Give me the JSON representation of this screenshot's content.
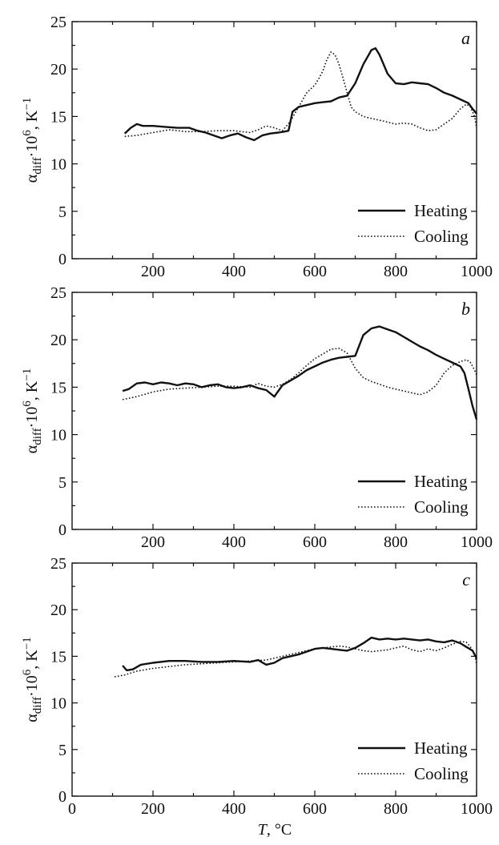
{
  "chart_data": [
    {
      "type": "line",
      "panel_label": "a",
      "ylabel": {
        "base": "α",
        "sub": "diff",
        "mid": "·10",
        "sup": "6",
        "unit": ", K",
        "unit_sup": "−1"
      },
      "xlim": [
        0,
        1000
      ],
      "ylim": [
        0,
        25
      ],
      "y_ticks": [
        0,
        5,
        10,
        15,
        20,
        25
      ],
      "x_ticks": [
        200,
        400,
        600,
        800,
        1000
      ],
      "legend_position": "bottom-right",
      "series": [
        {
          "name": "Heating",
          "style": "solid",
          "color": "#111111",
          "x": [
            130,
            145,
            160,
            175,
            200,
            230,
            260,
            290,
            310,
            330,
            350,
            370,
            390,
            410,
            430,
            450,
            470,
            490,
            510,
            525,
            535,
            545,
            560,
            580,
            600,
            620,
            640,
            660,
            680,
            700,
            720,
            740,
            750,
            760,
            780,
            800,
            820,
            840,
            860,
            880,
            900,
            920,
            940,
            960,
            980,
            990,
            1000
          ],
          "y": [
            13.2,
            13.8,
            14.2,
            14.0,
            14.0,
            13.9,
            13.8,
            13.8,
            13.5,
            13.3,
            13.0,
            12.7,
            13.0,
            13.2,
            12.8,
            12.5,
            13.0,
            13.2,
            13.3,
            13.4,
            13.5,
            15.5,
            16.0,
            16.2,
            16.4,
            16.5,
            16.6,
            17.0,
            17.2,
            18.5,
            20.5,
            22.0,
            22.2,
            21.5,
            19.5,
            18.5,
            18.4,
            18.6,
            18.5,
            18.4,
            18.0,
            17.5,
            17.2,
            16.8,
            16.4,
            15.8,
            15.3
          ]
        },
        {
          "name": "Cooling",
          "style": "dotted",
          "color": "#111111",
          "x": [
            130,
            160,
            200,
            240,
            280,
            320,
            360,
            400,
            440,
            460,
            480,
            500,
            520,
            540,
            560,
            580,
            600,
            610,
            620,
            630,
            640,
            650,
            660,
            670,
            680,
            690,
            700,
            720,
            740,
            760,
            780,
            800,
            820,
            840,
            860,
            880,
            900,
            920,
            940,
            960,
            975,
            985,
            995,
            1000
          ],
          "y": [
            12.9,
            13.0,
            13.3,
            13.6,
            13.4,
            13.4,
            13.5,
            13.5,
            13.3,
            13.6,
            14.0,
            13.8,
            13.5,
            14.5,
            16.0,
            17.5,
            18.3,
            19.0,
            19.8,
            21.0,
            21.8,
            21.5,
            20.5,
            19.0,
            17.5,
            16.0,
            15.5,
            15.0,
            14.8,
            14.6,
            14.4,
            14.2,
            14.3,
            14.2,
            13.8,
            13.5,
            13.6,
            14.2,
            14.8,
            15.8,
            16.3,
            16.0,
            15.0,
            13.8
          ]
        }
      ]
    },
    {
      "type": "line",
      "panel_label": "b",
      "ylabel": {
        "base": "α",
        "sub": "diff",
        "mid": "·10",
        "sup": "6",
        "unit": ", K",
        "unit_sup": "−1"
      },
      "xlim": [
        0,
        1000
      ],
      "ylim": [
        0,
        25
      ],
      "y_ticks": [
        0,
        5,
        10,
        15,
        20,
        25
      ],
      "x_ticks": [
        200,
        400,
        600,
        800,
        1000
      ],
      "legend_position": "bottom-right",
      "series": [
        {
          "name": "Heating",
          "style": "solid",
          "color": "#111111",
          "x": [
            125,
            140,
            160,
            180,
            200,
            220,
            240,
            260,
            280,
            300,
            320,
            340,
            360,
            380,
            400,
            420,
            440,
            460,
            480,
            500,
            520,
            540,
            560,
            580,
            600,
            620,
            640,
            660,
            680,
            700,
            720,
            740,
            760,
            780,
            800,
            820,
            840,
            860,
            880,
            900,
            920,
            940,
            960,
            970,
            980,
            990,
            1000
          ],
          "y": [
            14.6,
            14.8,
            15.4,
            15.5,
            15.3,
            15.5,
            15.4,
            15.2,
            15.4,
            15.3,
            15.0,
            15.2,
            15.3,
            15.0,
            14.9,
            15.0,
            15.2,
            14.9,
            14.7,
            14.0,
            15.2,
            15.7,
            16.2,
            16.8,
            17.2,
            17.6,
            17.9,
            18.1,
            18.2,
            18.3,
            20.5,
            21.2,
            21.4,
            21.1,
            20.8,
            20.3,
            19.8,
            19.3,
            18.9,
            18.4,
            18.0,
            17.6,
            17.2,
            16.5,
            14.8,
            13.0,
            11.6
          ]
        },
        {
          "name": "Cooling",
          "style": "dotted",
          "color": "#111111",
          "x": [
            125,
            160,
            200,
            240,
            280,
            320,
            360,
            400,
            440,
            460,
            480,
            500,
            520,
            540,
            560,
            580,
            600,
            620,
            640,
            660,
            680,
            700,
            720,
            740,
            760,
            780,
            800,
            820,
            840,
            860,
            880,
            900,
            920,
            940,
            960,
            975,
            985,
            995,
            1000
          ],
          "y": [
            13.7,
            14.0,
            14.5,
            14.8,
            14.9,
            15.0,
            15.1,
            15.1,
            15.0,
            15.4,
            15.1,
            15.0,
            15.3,
            15.8,
            16.5,
            17.3,
            18.0,
            18.5,
            19.0,
            19.1,
            18.6,
            17.0,
            16.0,
            15.6,
            15.3,
            15.0,
            14.8,
            14.6,
            14.4,
            14.2,
            14.5,
            15.2,
            16.5,
            17.3,
            17.7,
            17.9,
            17.6,
            16.8,
            16.3
          ]
        }
      ]
    },
    {
      "type": "line",
      "panel_label": "c",
      "ylabel": {
        "base": "α",
        "sub": "diff",
        "mid": "·10",
        "sup": "6",
        "unit": ", K",
        "unit_sup": "−1"
      },
      "xlabel": {
        "var": "T",
        "unit": ", °C"
      },
      "xlim": [
        0,
        1000
      ],
      "ylim": [
        0,
        25
      ],
      "y_ticks": [
        0,
        5,
        10,
        15,
        20,
        25
      ],
      "x_ticks": [
        0,
        200,
        400,
        600,
        800,
        1000
      ],
      "legend_position": "bottom-right",
      "series": [
        {
          "name": "Heating",
          "style": "solid",
          "color": "#111111",
          "x": [
            125,
            135,
            150,
            170,
            200,
            240,
            280,
            320,
            360,
            400,
            440,
            460,
            480,
            500,
            520,
            540,
            560,
            580,
            600,
            620,
            640,
            660,
            680,
            700,
            720,
            740,
            760,
            780,
            800,
            820,
            840,
            860,
            880,
            900,
            920,
            940,
            960,
            975,
            990,
            1000
          ],
          "y": [
            14.0,
            13.5,
            13.6,
            14.1,
            14.3,
            14.5,
            14.5,
            14.4,
            14.4,
            14.5,
            14.4,
            14.6,
            14.1,
            14.3,
            14.8,
            15.0,
            15.2,
            15.5,
            15.8,
            15.9,
            15.8,
            15.7,
            15.6,
            15.9,
            16.4,
            17.0,
            16.8,
            16.9,
            16.8,
            16.9,
            16.8,
            16.7,
            16.8,
            16.6,
            16.5,
            16.7,
            16.4,
            16.0,
            15.6,
            14.8
          ]
        },
        {
          "name": "Cooling",
          "style": "dotted",
          "color": "#111111",
          "x": [
            105,
            130,
            160,
            200,
            240,
            280,
            320,
            360,
            400,
            440,
            480,
            500,
            520,
            540,
            560,
            580,
            600,
            620,
            640,
            660,
            680,
            700,
            720,
            740,
            760,
            780,
            800,
            820,
            840,
            860,
            880,
            900,
            920,
            940,
            960,
            975,
            985,
            995,
            1000
          ],
          "y": [
            12.8,
            13.0,
            13.4,
            13.7,
            13.9,
            14.1,
            14.2,
            14.3,
            14.4,
            14.5,
            14.6,
            14.8,
            15.0,
            15.2,
            15.4,
            15.6,
            15.8,
            15.9,
            16.0,
            16.1,
            16.0,
            15.8,
            15.6,
            15.5,
            15.6,
            15.7,
            15.9,
            16.1,
            15.7,
            15.5,
            15.8,
            15.6,
            15.9,
            16.3,
            16.6,
            16.5,
            16.0,
            15.2,
            14.2
          ]
        }
      ]
    }
  ]
}
